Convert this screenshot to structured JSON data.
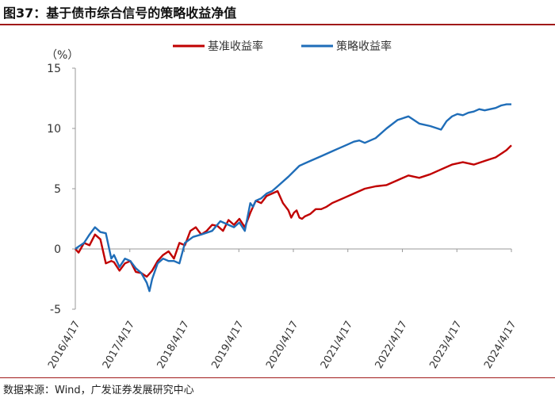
{
  "header": {
    "title": "图37：基于债市综合信号的策略收益净值"
  },
  "footer": {
    "source": "数据来源：Wind，广发证券发展研究中心"
  },
  "chart_data": {
    "type": "line",
    "ylabel": "（%）",
    "ylim": [
      -5,
      15
    ],
    "yticks": [
      "-5",
      "0",
      "5",
      "10",
      "15"
    ],
    "x_tick_labels": [
      "2016/4/17",
      "2017/4/17",
      "2018/4/17",
      "2019/4/17",
      "2020/4/17",
      "2021/4/17",
      "2022/4/17",
      "2023/4/17",
      "2024/4/17"
    ],
    "xlim": [
      2016.29,
      2024.29
    ],
    "grid": false,
    "legend": "top-center",
    "series": [
      {
        "name": "基准收益率",
        "color": "#c00000",
        "x": [
          2016.29,
          2016.35,
          2016.45,
          2016.55,
          2016.65,
          2016.75,
          2016.85,
          2016.95,
          2017.0,
          2017.1,
          2017.2,
          2017.3,
          2017.4,
          2017.5,
          2017.6,
          2017.7,
          2017.8,
          2017.9,
          2018.0,
          2018.1,
          2018.2,
          2018.3,
          2018.4,
          2018.5,
          2018.6,
          2018.7,
          2018.8,
          2018.9,
          2019.0,
          2019.1,
          2019.2,
          2019.3,
          2019.4,
          2019.5,
          2019.6,
          2019.7,
          2019.8,
          2019.9,
          2020.0,
          2020.1,
          2020.2,
          2020.25,
          2020.3,
          2020.35,
          2020.4,
          2020.45,
          2020.5,
          2020.6,
          2020.7,
          2020.8,
          2020.9,
          2021.0,
          2021.2,
          2021.4,
          2021.6,
          2021.8,
          2022.0,
          2022.2,
          2022.4,
          2022.6,
          2022.8,
          2023.0,
          2023.2,
          2023.4,
          2023.6,
          2023.8,
          2024.0,
          2024.2,
          2024.29
        ],
        "values": [
          0.0,
          -0.3,
          0.5,
          0.3,
          1.2,
          0.8,
          -1.2,
          -1.0,
          -1.1,
          -1.8,
          -1.2,
          -1.0,
          -1.9,
          -2.0,
          -2.3,
          -1.8,
          -1.0,
          -0.5,
          -0.2,
          -0.8,
          0.5,
          0.3,
          1.5,
          1.8,
          1.2,
          1.5,
          2.0,
          1.9,
          1.5,
          2.4,
          2.0,
          2.5,
          1.8,
          3.0,
          4.0,
          3.8,
          4.4,
          4.6,
          4.8,
          3.8,
          3.2,
          2.6,
          3.0,
          3.2,
          2.6,
          2.5,
          2.7,
          2.9,
          3.3,
          3.3,
          3.5,
          3.8,
          4.2,
          4.6,
          5.0,
          5.2,
          5.3,
          5.7,
          6.1,
          5.9,
          6.2,
          6.6,
          7.0,
          7.2,
          7.0,
          7.3,
          7.6,
          8.2,
          8.6
        ]
      },
      {
        "name": "策略收益率",
        "color": "#1f6db8",
        "x": [
          2016.29,
          2016.35,
          2016.45,
          2016.55,
          2016.65,
          2016.75,
          2016.85,
          2016.95,
          2017.0,
          2017.1,
          2017.2,
          2017.3,
          2017.4,
          2017.5,
          2017.6,
          2017.65,
          2017.7,
          2017.8,
          2017.9,
          2018.0,
          2018.1,
          2018.2,
          2018.3,
          2018.45,
          2018.6,
          2018.8,
          2018.95,
          2019.1,
          2019.2,
          2019.3,
          2019.4,
          2019.5,
          2019.55,
          2019.6,
          2019.7,
          2019.8,
          2019.9,
          2020.0,
          2020.2,
          2020.4,
          2020.6,
          2020.8,
          2021.0,
          2021.1,
          2021.2,
          2021.3,
          2021.4,
          2021.5,
          2021.6,
          2021.8,
          2022.0,
          2022.2,
          2022.4,
          2022.6,
          2022.8,
          2023.0,
          2023.1,
          2023.2,
          2023.3,
          2023.4,
          2023.5,
          2023.6,
          2023.7,
          2023.8,
          2023.9,
          2024.0,
          2024.1,
          2024.2,
          2024.29
        ],
        "values": [
          0.0,
          0.2,
          0.5,
          1.2,
          1.8,
          1.4,
          1.3,
          -0.8,
          -0.5,
          -1.5,
          -0.8,
          -1.0,
          -1.6,
          -2.0,
          -2.8,
          -3.5,
          -2.5,
          -1.2,
          -0.8,
          -1.0,
          -1.0,
          -1.2,
          0.5,
          1.0,
          1.2,
          1.5,
          2.3,
          2.0,
          1.8,
          2.2,
          1.5,
          3.8,
          3.5,
          4.0,
          4.2,
          4.6,
          4.8,
          5.2,
          6.0,
          6.9,
          7.3,
          7.7,
          8.1,
          8.3,
          8.5,
          8.7,
          8.9,
          9.0,
          8.8,
          9.2,
          10.0,
          10.7,
          11.0,
          10.4,
          10.2,
          9.9,
          10.6,
          11.0,
          11.2,
          11.1,
          11.3,
          11.4,
          11.6,
          11.5,
          11.6,
          11.7,
          11.9,
          12.0,
          12.0
        ]
      }
    ]
  }
}
